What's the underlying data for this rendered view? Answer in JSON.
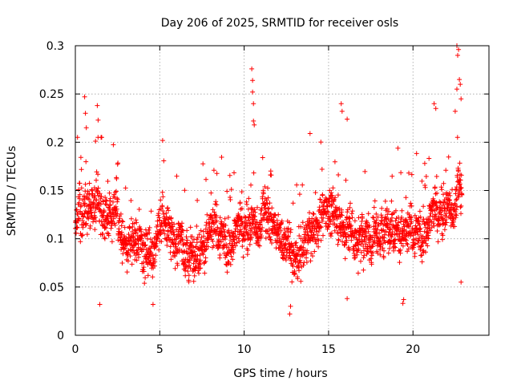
{
  "colors": {
    "points": "#ff0000",
    "axis": "#000000",
    "grid": "#a0a0a0",
    "background": "#ffffff"
  },
  "chart_data": {
    "type": "scatter",
    "title": "Day 206 of 2025, SRMTID for receiver osls",
    "xlabel": "GPS time / hours",
    "ylabel": "SRMTID / TECUs",
    "xlim": [
      0,
      24.5
    ],
    "ylim": [
      0,
      0.3
    ],
    "grid": true,
    "legend": "none",
    "marker": "plus",
    "xticks": [
      0,
      5,
      10,
      15,
      20
    ],
    "xtick_labels": [
      "0",
      "5",
      "10",
      "15",
      "20"
    ],
    "yticks": [
      0,
      0.05,
      0.1,
      0.15,
      0.2,
      0.25,
      0.3
    ],
    "ytick_labels": [
      "0",
      "0.05",
      "0.1",
      "0.15",
      "0.2",
      "0.25",
      "0.3"
    ],
    "series": [
      {
        "name": "SRMTID",
        "n_points": 2300,
        "sampling_interval_hours": 0.01,
        "x_range": [
          0,
          22.9
        ],
        "typical_range": [
          0.05,
          0.15
        ],
        "median_profile": {
          "x": [
            0,
            0.5,
            1,
            1.5,
            2,
            2.5,
            3,
            3.5,
            4,
            4.5,
            5,
            5.5,
            6,
            6.5,
            7,
            7.5,
            8,
            8.5,
            9,
            9.5,
            10,
            10.5,
            11,
            11.5,
            12,
            12.5,
            13,
            13.5,
            14,
            14.5,
            15,
            15.5,
            16,
            16.5,
            17,
            17.5,
            18,
            18.5,
            19,
            19.5,
            20,
            20.5,
            21,
            21.5,
            22,
            22.5,
            22.9
          ],
          "y": [
            0.125,
            0.12,
            0.13,
            0.125,
            0.12,
            0.115,
            0.1,
            0.09,
            0.095,
            0.1,
            0.11,
            0.115,
            0.1,
            0.09,
            0.085,
            0.09,
            0.105,
            0.1,
            0.095,
            0.1,
            0.11,
            0.115,
            0.12,
            0.125,
            0.11,
            0.095,
            0.085,
            0.09,
            0.11,
            0.125,
            0.13,
            0.125,
            0.115,
            0.105,
            0.1,
            0.105,
            0.11,
            0.115,
            0.11,
            0.1,
            0.1,
            0.105,
            0.115,
            0.125,
            0.13,
            0.14,
            0.15
          ]
        },
        "outliers": [
          {
            "x": 0.55,
            "y": 0.247
          },
          {
            "x": 0.6,
            "y": 0.23
          },
          {
            "x": 0.65,
            "y": 0.215
          },
          {
            "x": 1.3,
            "y": 0.238
          },
          {
            "x": 1.35,
            "y": 0.223
          },
          {
            "x": 10.45,
            "y": 0.276
          },
          {
            "x": 10.5,
            "y": 0.264
          },
          {
            "x": 10.5,
            "y": 0.252
          },
          {
            "x": 10.55,
            "y": 0.24
          },
          {
            "x": 10.55,
            "y": 0.222
          },
          {
            "x": 10.6,
            "y": 0.218
          },
          {
            "x": 13.9,
            "y": 0.209
          },
          {
            "x": 15.75,
            "y": 0.24
          },
          {
            "x": 15.8,
            "y": 0.232
          },
          {
            "x": 16.1,
            "y": 0.224
          },
          {
            "x": 21.25,
            "y": 0.24
          },
          {
            "x": 21.35,
            "y": 0.235
          },
          {
            "x": 22.6,
            "y": 0.3
          },
          {
            "x": 22.7,
            "y": 0.296
          },
          {
            "x": 22.65,
            "y": 0.29
          },
          {
            "x": 22.75,
            "y": 0.265
          },
          {
            "x": 22.8,
            "y": 0.26
          },
          {
            "x": 22.6,
            "y": 0.255
          },
          {
            "x": 22.85,
            "y": 0.245
          },
          {
            "x": 22.5,
            "y": 0.232
          },
          {
            "x": 12.7,
            "y": 0.022
          },
          {
            "x": 12.75,
            "y": 0.03
          },
          {
            "x": 1.45,
            "y": 0.032
          },
          {
            "x": 4.6,
            "y": 0.032
          },
          {
            "x": 19.4,
            "y": 0.033
          },
          {
            "x": 19.45,
            "y": 0.037
          },
          {
            "x": 16.1,
            "y": 0.038
          },
          {
            "x": 22.85,
            "y": 0.055
          }
        ]
      }
    ]
  }
}
